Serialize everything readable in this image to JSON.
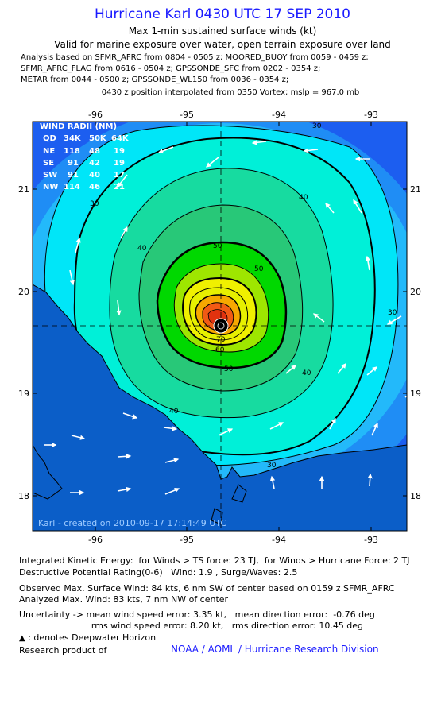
{
  "header": {
    "title": "Hurricane Karl 0430 UTC 17 SEP 2010",
    "subtitle1": "Max 1-min sustained surface winds (kt)",
    "subtitle2": "Valid for marine exposure over water, open terrain exposure over land",
    "analysis_lines": [
      "Analysis based on SFMR_AFRC from 0804 - 0505 z; MOORED_BUOY from 0059 - 0459 z;",
      "SFMR_AFRC_FLAG from 0616 - 0504 z; GPSSONDE_SFC from 0202 - 0354 z;",
      "METAR from 0044 - 0500 z; GPSSONDE_WL150 from 0036 - 0354 z;"
    ],
    "position_line": "0430 z position interpolated from 0350 Vortex; mslp = 967.0 mb"
  },
  "map": {
    "lon_ticks": [
      "-96",
      "-95",
      "-94",
      "-93"
    ],
    "lat_ticks": [
      "21",
      "20",
      "19",
      "18"
    ],
    "contour_labels": [
      "30",
      "30",
      "30",
      "30",
      "40",
      "40",
      "40",
      "40",
      "50",
      "50",
      "50",
      "60",
      "70"
    ],
    "watermark": "Karl - created on 2010-09-17 17:14:49 UTC",
    "center": {
      "lon": -94.65,
      "lat": 19.67
    },
    "wind_radii": {
      "title": "WIND RADII (NM)",
      "header": [
        "QD",
        "34K",
        "50K",
        "64K"
      ],
      "rows": [
        [
          "NE",
          "118",
          "48",
          "19"
        ],
        [
          "SE",
          "91",
          "42",
          "19"
        ],
        [
          "SW",
          "91",
          "40",
          "17"
        ],
        [
          "NW",
          "114",
          "46",
          "21"
        ]
      ]
    },
    "colors": {
      "blue_dark": "#1c5ef0",
      "blue": "#1f8df5",
      "light_blue": "#23b9fa",
      "cyan": "#00e6f8",
      "aqua": "#00f0d8",
      "teal_green": "#17dba0",
      "green": "#28c878",
      "bright_green": "#00d800",
      "yellow_green": "#9ee600",
      "yellow": "#f0f000",
      "orange": "#f7a800",
      "red_orange": "#f25a14",
      "land": "#0b5ec8"
    }
  },
  "footer": {
    "ike": "Integrated Kinetic Energy:  for Winds > TS force: 23 TJ,  for Winds > Hurricane Force: 2 TJ",
    "dpr": "Destructive Potential Rating(0-6)   Wind: 1.9 , Surge/Waves: 2.5",
    "observed": "Observed Max. Surface Wind: 84 kts, 6 nm SW of center based on 0159 z SFMR_AFRC",
    "analyzed": "Analyzed Max. Wind: 83 kts, 7 nm NW of center",
    "uncert1": "Uncertainty -> mean wind speed error: 3.35 kt,   mean direction error:  -0.76 deg",
    "uncert2": "                          rms wind speed error: 8.20 kt,   rms direction error: 10.45 deg",
    "deepwater": " : denotes Deepwater Horizon",
    "research": "Research product of",
    "org": "NOAA / AOML / Hurricane Research Division"
  }
}
